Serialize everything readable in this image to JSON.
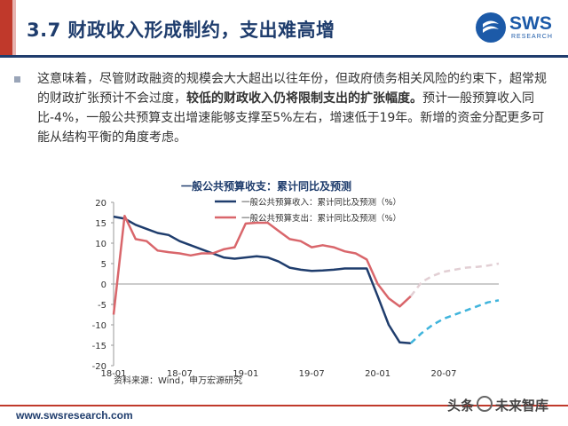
{
  "slide": {
    "title": "3.7 财政收入形成制约，支出难高增",
    "logo_text": "SWS",
    "logo_sub": "RESEARCH"
  },
  "paragraph": {
    "part1": "这意味着，尽管财政融资的规模会大大超出以往年份，但政府债务相关风险的约束下，超常规的财政扩张预计不会过度，",
    "emphasis": "较低的财政收入仍将限制支出的扩张幅度。",
    "part2": "预计一般预算收入同比-4%，一般公共预算支出增速能够支撑至5%左右，增速低于19年。新增的资金分配更多可能从结构平衡的角度考虑。"
  },
  "footer": {
    "url": "www.swsresearch.com",
    "watermark_left": "头条",
    "watermark_right": "未来智库"
  },
  "colors": {
    "accent": "#c0392b",
    "navy": "#1f3d6d",
    "revenue": "#1f3d6d",
    "expenditure": "#d9666b",
    "revenue_forecast": "#3fb4dc",
    "expenditure_forecast": "#e2cfd4"
  },
  "chart_data": {
    "type": "line",
    "title": "一般公共预算收支：累计同比及预测",
    "source": "资料来源：Wind，申万宏源研究",
    "x_ticks": [
      "18-01",
      "18-07",
      "19-01",
      "19-07",
      "20-01",
      "20-07"
    ],
    "ylim": [
      -20,
      20
    ],
    "y_ticks": [
      20,
      15,
      10,
      5,
      0,
      -5,
      -10,
      -15,
      -20
    ],
    "legend_position": "top-right",
    "series": [
      {
        "name": "一般公共预算收入：累计同比及预测（%）",
        "style": "solid",
        "points": [
          [
            "2018-01",
            16.5
          ],
          [
            "2018-02",
            16
          ],
          [
            "2018-03",
            14.5
          ],
          [
            "2018-04",
            13.5
          ],
          [
            "2018-05",
            12.5
          ],
          [
            "2018-06",
            12
          ],
          [
            "2018-07",
            10.5
          ],
          [
            "2018-08",
            9.5
          ],
          [
            "2018-09",
            8.5
          ],
          [
            "2018-10",
            7.5
          ],
          [
            "2018-11",
            6.5
          ],
          [
            "2018-12",
            6.2
          ],
          [
            "2019-01",
            6.5
          ],
          [
            "2019-02",
            6.8
          ],
          [
            "2019-03",
            6.5
          ],
          [
            "2019-04",
            5.5
          ],
          [
            "2019-05",
            4
          ],
          [
            "2019-06",
            3.5
          ],
          [
            "2019-07",
            3.2
          ],
          [
            "2019-08",
            3.3
          ],
          [
            "2019-09",
            3.5
          ],
          [
            "2019-10",
            3.8
          ],
          [
            "2019-11",
            3.8
          ],
          [
            "2019-12",
            3.8
          ],
          [
            "2020-01",
            -3
          ],
          [
            "2020-02",
            -10
          ],
          [
            "2020-03",
            -14.3
          ],
          [
            "2020-04",
            -14.5
          ]
        ]
      },
      {
        "name": "一般公共预算支出：累计同比及预测（%）",
        "style": "solid",
        "points": [
          [
            "2018-01",
            -7.5
          ],
          [
            "2018-02",
            16.7
          ],
          [
            "2018-03",
            11
          ],
          [
            "2018-04",
            10.5
          ],
          [
            "2018-05",
            8.2
          ],
          [
            "2018-06",
            7.8
          ],
          [
            "2018-07",
            7.5
          ],
          [
            "2018-08",
            7
          ],
          [
            "2018-09",
            7.5
          ],
          [
            "2018-10",
            7.5
          ],
          [
            "2018-11",
            8.5
          ],
          [
            "2018-12",
            9
          ],
          [
            "2019-01",
            14.8
          ],
          [
            "2019-02",
            15
          ],
          [
            "2019-03",
            15
          ],
          [
            "2019-04",
            13
          ],
          [
            "2019-05",
            11
          ],
          [
            "2019-06",
            10.5
          ],
          [
            "2019-07",
            9
          ],
          [
            "2019-08",
            9.5
          ],
          [
            "2019-09",
            9
          ],
          [
            "2019-10",
            8
          ],
          [
            "2019-11",
            7.5
          ],
          [
            "2019-12",
            6
          ],
          [
            "2020-01",
            0
          ],
          [
            "2020-02",
            -3.5
          ],
          [
            "2020-03",
            -5.5
          ],
          [
            "2020-04",
            -3
          ]
        ]
      },
      {
        "name": "",
        "style": "dashed",
        "points": [
          [
            "2020-04",
            -14.5
          ],
          [
            "2020-05",
            -12
          ],
          [
            "2020-06",
            -10
          ],
          [
            "2020-07",
            -8.5
          ],
          [
            "2020-08",
            -7.5
          ],
          [
            "2020-09",
            -6.5
          ],
          [
            "2020-10",
            -5.5
          ],
          [
            "2020-11",
            -4.5
          ],
          [
            "2020-12",
            -4
          ]
        ]
      },
      {
        "name": "",
        "style": "dashed",
        "points": [
          [
            "2020-04",
            -3
          ],
          [
            "2020-05",
            0.5
          ],
          [
            "2020-06",
            2
          ],
          [
            "2020-07",
            3
          ],
          [
            "2020-08",
            3.5
          ],
          [
            "2020-09",
            4
          ],
          [
            "2020-10",
            4.2
          ],
          [
            "2020-11",
            4.5
          ],
          [
            "2020-12",
            5
          ]
        ]
      }
    ]
  }
}
